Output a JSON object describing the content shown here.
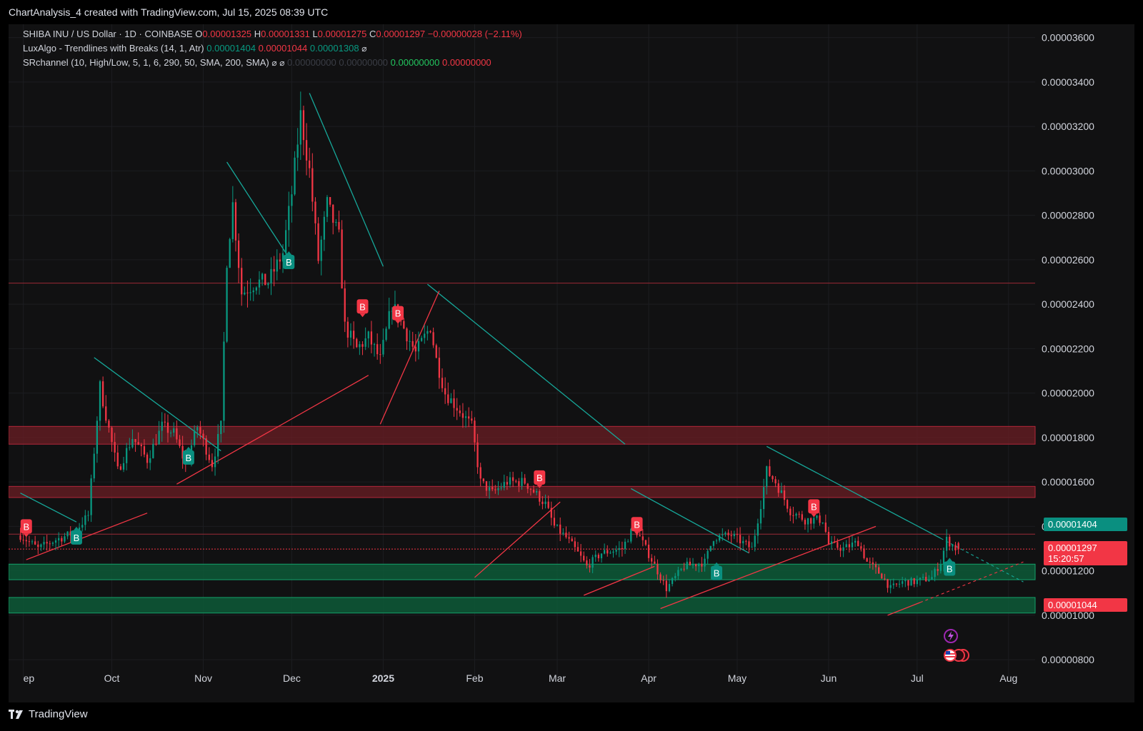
{
  "header": {
    "attribution": "ChartAnalysis_4 created with TradingView.com, Jul 15, 2025 08:39 UTC"
  },
  "legend": {
    "symbol": "SHIBA INU / US Dollar · 1D · COINBASE",
    "o_label": "O",
    "o_value": "0.00001325",
    "h_label": "H",
    "h_value": "0.00001331",
    "l_label": "L",
    "l_value": "0.00001275",
    "c_label": "C",
    "c_value": "0.00001297",
    "change": "−0.00000028 (−2.11%)",
    "ind1_name": "LuxAlgo - Trendlines with Breaks (14, 1, Atr)",
    "ind1_v1": "0.00001404",
    "ind1_v2": "0.00001044",
    "ind1_v3": "0.00001308",
    "ind2_name": "SRchannel (10, High/Low, 5, 1, 6, 290, 50, SMA, 200, SMA)",
    "ind2_v1": "0.00000000",
    "ind2_v2": "0.00000000",
    "ind2_v3": "0.00000000",
    "ind2_v4": "0.00000000"
  },
  "badges": {
    "upper_trend": "0.00001404",
    "last_price": "0.00001297",
    "countdown": "15:20:57",
    "lower_trend": "0.00001044"
  },
  "footer": {
    "brand": "TradingView"
  },
  "colors": {
    "up": "#089981",
    "down": "#f23645",
    "background": "#111112",
    "trend_up": "#f23645",
    "trend_down": "#16a89a",
    "resistance_zone": "#6b1d24",
    "support_zone": "#0d5a38"
  },
  "chart_data": {
    "type": "candlestick",
    "title": "SHIBA INU / US Dollar · 1D · COINBASE",
    "xlabel": "",
    "ylabel": "",
    "ylim": [
      7.2e-06,
      3.66e-05
    ],
    "y_ticks": [
      "0.00000800",
      "0.00001000",
      "0.00001200",
      "0.00001400",
      "0.00001600",
      "0.00001800",
      "0.00002000",
      "0.00002200",
      "0.00002400",
      "0.00002600",
      "0.00002800",
      "0.00003000",
      "0.00003200",
      "0.00003400",
      "0.00003600"
    ],
    "x_ticks": [
      {
        "label": "ep",
        "date": "2024-09-01"
      },
      {
        "label": "Oct",
        "date": "2024-10-01"
      },
      {
        "label": "Nov",
        "date": "2024-11-01"
      },
      {
        "label": "Dec",
        "date": "2024-12-01"
      },
      {
        "label": "2025",
        "date": "2025-01-01"
      },
      {
        "label": "Feb",
        "date": "2025-02-01"
      },
      {
        "label": "Mar",
        "date": "2025-03-01"
      },
      {
        "label": "Apr",
        "date": "2025-04-01"
      },
      {
        "label": "May",
        "date": "2025-05-01"
      },
      {
        "label": "Jun",
        "date": "2025-06-01"
      },
      {
        "label": "Jul",
        "date": "2025-07-01"
      },
      {
        "label": "Aug",
        "date": "2025-08-01"
      }
    ],
    "anchors": [
      [
        "2024-08-31",
        1.36e-05
      ],
      [
        "2024-09-06",
        1.3e-05
      ],
      [
        "2024-09-12",
        1.34e-05
      ],
      [
        "2024-09-18",
        1.37e-05
      ],
      [
        "2024-09-23",
        1.45e-05
      ],
      [
        "2024-09-27",
        2.03e-05
      ],
      [
        "2024-09-29",
        1.9e-05
      ],
      [
        "2024-10-03",
        1.65e-05
      ],
      [
        "2024-10-08",
        1.8e-05
      ],
      [
        "2024-10-13",
        1.7e-05
      ],
      [
        "2024-10-18",
        1.85e-05
      ],
      [
        "2024-10-22",
        1.82e-05
      ],
      [
        "2024-10-26",
        1.68e-05
      ],
      [
        "2024-10-30",
        1.85e-05
      ],
      [
        "2024-11-04",
        1.68e-05
      ],
      [
        "2024-11-07",
        1.85e-05
      ],
      [
        "2024-11-09",
        2.6e-05
      ],
      [
        "2024-11-11",
        2.85e-05
      ],
      [
        "2024-11-14",
        2.45e-05
      ],
      [
        "2024-11-19",
        2.5e-05
      ],
      [
        "2024-11-23",
        2.5e-05
      ],
      [
        "2024-11-28",
        2.63e-05
      ],
      [
        "2024-12-01",
        2.9e-05
      ],
      [
        "2024-12-04",
        3.25e-05
      ],
      [
        "2024-12-07",
        3e-05
      ],
      [
        "2024-12-10",
        2.6e-05
      ],
      [
        "2024-12-13",
        2.85e-05
      ],
      [
        "2024-12-17",
        2.7e-05
      ],
      [
        "2024-12-19",
        2.3e-05
      ],
      [
        "2024-12-23",
        2.2e-05
      ],
      [
        "2024-12-27",
        2.25e-05
      ],
      [
        "2024-12-31",
        2.15e-05
      ],
      [
        "2025-01-04",
        2.4e-05
      ],
      [
        "2025-01-07",
        2.32e-05
      ],
      [
        "2025-01-12",
        2.18e-05
      ],
      [
        "2025-01-17",
        2.3e-05
      ],
      [
        "2025-01-19",
        2.15e-05
      ],
      [
        "2025-01-22",
        2e-05
      ],
      [
        "2025-01-27",
        1.92e-05
      ],
      [
        "2025-01-31",
        1.85e-05
      ],
      [
        "2025-02-03",
        1.6e-05
      ],
      [
        "2025-02-07",
        1.55e-05
      ],
      [
        "2025-02-12",
        1.6e-05
      ],
      [
        "2025-02-18",
        1.6e-05
      ],
      [
        "2025-02-25",
        1.5e-05
      ],
      [
        "2025-02-28",
        1.4e-05
      ],
      [
        "2025-03-04",
        1.35e-05
      ],
      [
        "2025-03-08",
        1.28e-05
      ],
      [
        "2025-03-11",
        1.22e-05
      ],
      [
        "2025-03-16",
        1.28e-05
      ],
      [
        "2025-03-23",
        1.3e-05
      ],
      [
        "2025-03-27",
        1.4e-05
      ],
      [
        "2025-04-02",
        1.25e-05
      ],
      [
        "2025-04-07",
        1.12e-05
      ],
      [
        "2025-04-13",
        1.22e-05
      ],
      [
        "2025-04-20",
        1.24e-05
      ],
      [
        "2025-04-23",
        1.35e-05
      ],
      [
        "2025-04-29",
        1.36e-05
      ],
      [
        "2025-05-06",
        1.3e-05
      ],
      [
        "2025-05-09",
        1.5e-05
      ],
      [
        "2025-05-11",
        1.65e-05
      ],
      [
        "2025-05-14",
        1.6e-05
      ],
      [
        "2025-05-19",
        1.47e-05
      ],
      [
        "2025-05-24",
        1.43e-05
      ],
      [
        "2025-05-30",
        1.43e-05
      ],
      [
        "2025-06-01",
        1.32e-05
      ],
      [
        "2025-06-06",
        1.3e-05
      ],
      [
        "2025-06-11",
        1.33e-05
      ],
      [
        "2025-06-14",
        1.24e-05
      ],
      [
        "2025-06-19",
        1.18e-05
      ],
      [
        "2025-06-22",
        1.12e-05
      ],
      [
        "2025-06-26",
        1.15e-05
      ],
      [
        "2025-06-30",
        1.15e-05
      ],
      [
        "2025-07-06",
        1.17e-05
      ],
      [
        "2025-07-09",
        1.24e-05
      ],
      [
        "2025-07-11",
        1.34e-05
      ],
      [
        "2025-07-15",
        1.29e-05
      ]
    ],
    "last": {
      "date": "2025-07-15",
      "open": 1.325e-05,
      "high": 1.331e-05,
      "low": 1.275e-05,
      "close": 1.297e-05,
      "change": -2.8e-07,
      "change_pct": -2.11
    },
    "horizontal_lines": [
      2.495e-05,
      1.365e-05,
      1.298e-05
    ],
    "resistance_zones": [
      [
        1.77e-05,
        1.85e-05
      ],
      [
        1.53e-05,
        1.58e-05
      ]
    ],
    "support_zones": [
      [
        1.16e-05,
        1.23e-05
      ],
      [
        1.01e-05,
        1.08e-05
      ]
    ],
    "trendlines": [
      {
        "kind": "down",
        "from": [
          "2024-08-31",
          1.55e-05
        ],
        "to": [
          "2024-09-19",
          1.42e-05
        ]
      },
      {
        "kind": "down",
        "from": [
          "2024-09-25",
          2.16e-05
        ],
        "to": [
          "2024-11-07",
          1.74e-05
        ]
      },
      {
        "kind": "down",
        "from": [
          "2024-11-09",
          3.04e-05
        ],
        "to": [
          "2024-11-30",
          2.61e-05
        ]
      },
      {
        "kind": "down",
        "from": [
          "2024-12-07",
          3.35e-05
        ],
        "to": [
          "2025-01-01",
          2.57e-05
        ]
      },
      {
        "kind": "down",
        "from": [
          "2025-01-16",
          2.49e-05
        ],
        "to": [
          "2025-03-24",
          1.77e-05
        ]
      },
      {
        "kind": "down",
        "from": [
          "2025-03-26",
          1.57e-05
        ],
        "to": [
          "2025-05-05",
          1.28e-05
        ]
      },
      {
        "kind": "down",
        "from": [
          "2025-05-11",
          1.76e-05
        ],
        "to": [
          "2025-08-06",
          1.15e-05
        ],
        "dashed_after": "2025-07-09"
      },
      {
        "kind": "up",
        "from": [
          "2024-09-02",
          1.25e-05
        ],
        "to": [
          "2024-10-13",
          1.46e-05
        ]
      },
      {
        "kind": "up",
        "from": [
          "2024-10-23",
          1.59e-05
        ],
        "to": [
          "2024-12-27",
          2.08e-05
        ]
      },
      {
        "kind": "up",
        "from": [
          "2024-12-31",
          1.86e-05
        ],
        "to": [
          "2025-01-20",
          2.46e-05
        ]
      },
      {
        "kind": "up",
        "from": [
          "2025-02-01",
          1.17e-05
        ],
        "to": [
          "2025-03-02",
          1.51e-05
        ]
      },
      {
        "kind": "up",
        "from": [
          "2025-03-10",
          1.09e-05
        ],
        "to": [
          "2025-04-03",
          1.22e-05
        ]
      },
      {
        "kind": "up",
        "from": [
          "2025-04-05",
          1.03e-05
        ],
        "to": [
          "2025-06-17",
          1.4e-05
        ]
      },
      {
        "kind": "up",
        "from": [
          "2025-06-21",
          1e-05
        ],
        "to": [
          "2025-08-06",
          1.24e-05
        ],
        "dashed_after": "2025-07-02"
      }
    ],
    "break_labels": [
      {
        "date": "2024-09-02",
        "price": 1.4e-05,
        "side": "bear",
        "text": "B"
      },
      {
        "date": "2024-09-19",
        "price": 1.35e-05,
        "side": "bull",
        "text": "B"
      },
      {
        "date": "2024-10-27",
        "price": 1.71e-05,
        "side": "bull",
        "text": "B"
      },
      {
        "date": "2024-11-30",
        "price": 2.59e-05,
        "side": "bull",
        "text": "B"
      },
      {
        "date": "2024-12-25",
        "price": 2.39e-05,
        "side": "bear",
        "text": "B"
      },
      {
        "date": "2025-01-06",
        "price": 2.36e-05,
        "side": "bear",
        "text": "B"
      },
      {
        "date": "2025-02-23",
        "price": 1.62e-05,
        "side": "bear",
        "text": "B"
      },
      {
        "date": "2025-03-28",
        "price": 1.41e-05,
        "side": "bear",
        "text": "B"
      },
      {
        "date": "2025-04-24",
        "price": 1.19e-05,
        "side": "bull",
        "text": "B"
      },
      {
        "date": "2025-05-27",
        "price": 1.49e-05,
        "side": "bear",
        "text": "B"
      },
      {
        "date": "2025-07-12",
        "price": 1.21e-05,
        "side": "bull",
        "text": "B"
      }
    ]
  }
}
